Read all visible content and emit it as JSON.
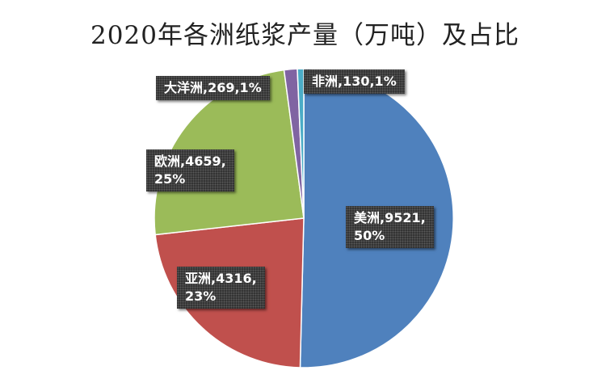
{
  "chart_data": {
    "type": "pie",
    "title": "2020年各洲纸浆产量（万吨）及占比",
    "categories": [
      "美洲",
      "亚洲",
      "欧洲",
      "大洋洲",
      "非洲"
    ],
    "values": [
      9521,
      4316,
      4659,
      269,
      130
    ],
    "percent_labels": [
      "50%",
      "23%",
      "25%",
      "1%",
      "1%"
    ],
    "colors": [
      "#4f81bd",
      "#c0504d",
      "#9bbb59",
      "#8064a2",
      "#4bacc6"
    ],
    "start_angle": "12 o'clock",
    "direction": "clockwise",
    "legend": "none",
    "data_labels": [
      {
        "lines": [
          "美洲,9521,",
          "50%"
        ]
      },
      {
        "lines": [
          "亚洲,4316,",
          "23%"
        ]
      },
      {
        "lines": [
          "欧洲,4659,",
          "25%"
        ]
      },
      {
        "lines": [
          "大洋洲,269,1%"
        ]
      },
      {
        "lines": [
          "非洲,130,1%"
        ]
      }
    ]
  }
}
